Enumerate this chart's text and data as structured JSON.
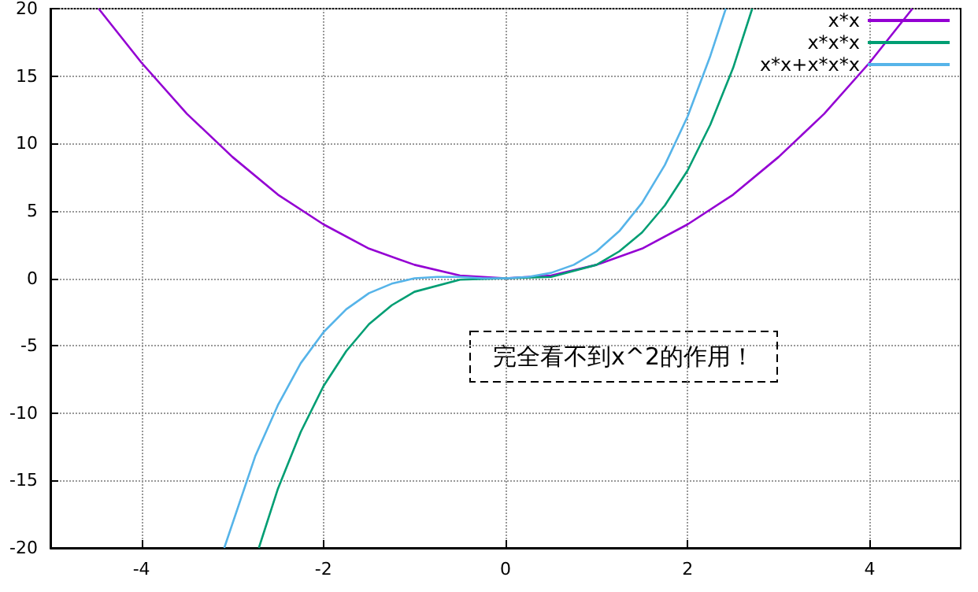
{
  "chart_data": {
    "type": "line",
    "xlim": [
      -5,
      5
    ],
    "ylim": [
      -20,
      20
    ],
    "xticks": [
      -4,
      -2,
      0,
      2,
      4
    ],
    "yticks": [
      -20,
      -15,
      -10,
      -5,
      0,
      5,
      10,
      15,
      20
    ],
    "grid": true,
    "legend": "top right",
    "marker": "none",
    "line_style": "solid",
    "series": [
      {
        "name": "x*x",
        "color": "#9400d3",
        "x": [
          -4.47,
          -4,
          -3.5,
          -3,
          -2.5,
          -2,
          -1.5,
          -1,
          -0.5,
          0,
          0.5,
          1,
          1.5,
          2,
          2.5,
          3,
          3.5,
          4,
          4.47
        ],
        "values": [
          20,
          16,
          12.2,
          9,
          6.2,
          4,
          2.2,
          1,
          0.2,
          0,
          0.2,
          1,
          2.2,
          4,
          6.2,
          9,
          12.2,
          16,
          20
        ]
      },
      {
        "name": "x*x*x",
        "color": "#009e73",
        "x": [
          -2.71,
          -2.5,
          -2.25,
          -2,
          -1.75,
          -1.5,
          -1.25,
          -1,
          -0.5,
          0,
          0.5,
          1,
          1.25,
          1.5,
          1.75,
          2,
          2.25,
          2.5,
          2.71
        ],
        "values": [
          -20,
          -15.6,
          -11.4,
          -8,
          -5.4,
          -3.4,
          -2,
          -1,
          -0.1,
          0,
          0.1,
          1,
          2,
          3.4,
          5.4,
          8,
          11.4,
          15.6,
          20
        ]
      },
      {
        "name": "x*x+x*x*x",
        "color": "#56b4e9",
        "x": [
          -3.09,
          -2.75,
          -2.5,
          -2.25,
          -2,
          -1.75,
          -1.5,
          -1.25,
          -1,
          -0.75,
          -0.5,
          -0.25,
          0,
          0.25,
          0.5,
          0.75,
          1,
          1.25,
          1.5,
          1.75,
          2,
          2.25,
          2.42
        ],
        "values": [
          -20,
          -13.2,
          -9.4,
          -6.3,
          -4,
          -2.3,
          -1.1,
          -0.4,
          0,
          0.1,
          0.1,
          0,
          0,
          0.1,
          0.4,
          1,
          2,
          3.5,
          5.6,
          8.4,
          12,
          16.5,
          20
        ]
      }
    ],
    "annotations": [
      "完全看不到x^2的作用！"
    ]
  }
}
